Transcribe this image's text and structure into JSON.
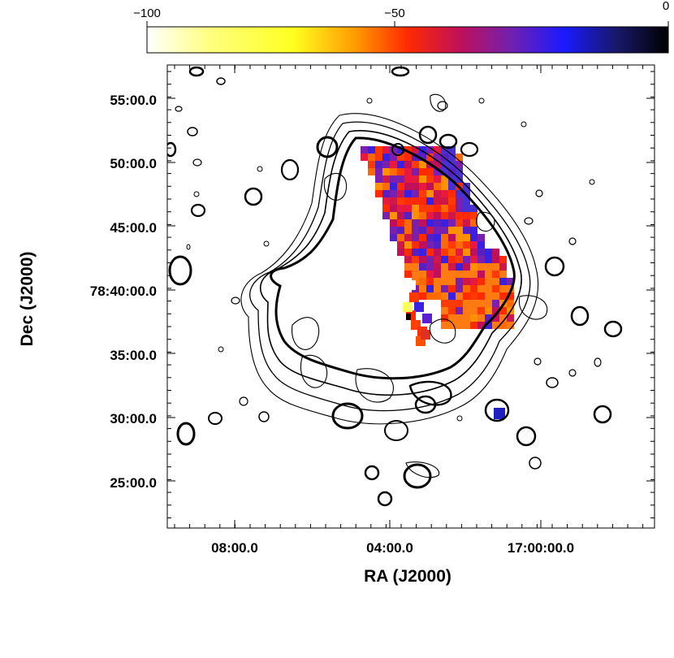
{
  "chart_data": {
    "type": "heatmap",
    "title": "",
    "xlabel": "RA (J2000)",
    "ylabel": "Dec (J2000)",
    "x_ticks": [
      "08:00.0",
      "04:00.0",
      "17:00:00.0"
    ],
    "y_ticks": [
      "55:00.0",
      "50:00.0",
      "45:00.0",
      "78:40:00.0",
      "35:00.0",
      "30:00.0",
      "25:00.0"
    ],
    "colorbar": {
      "ticks": [
        "−100",
        "−50",
        "0"
      ],
      "range": [
        -100,
        0
      ],
      "colors": [
        "#ffffff",
        "#ffff30",
        "#ff9000",
        "#ff2000",
        "#c01060",
        "#7020c0",
        "#2020ff",
        "#101040",
        "#000000"
      ]
    },
    "overlay": "contours",
    "grid": false
  }
}
